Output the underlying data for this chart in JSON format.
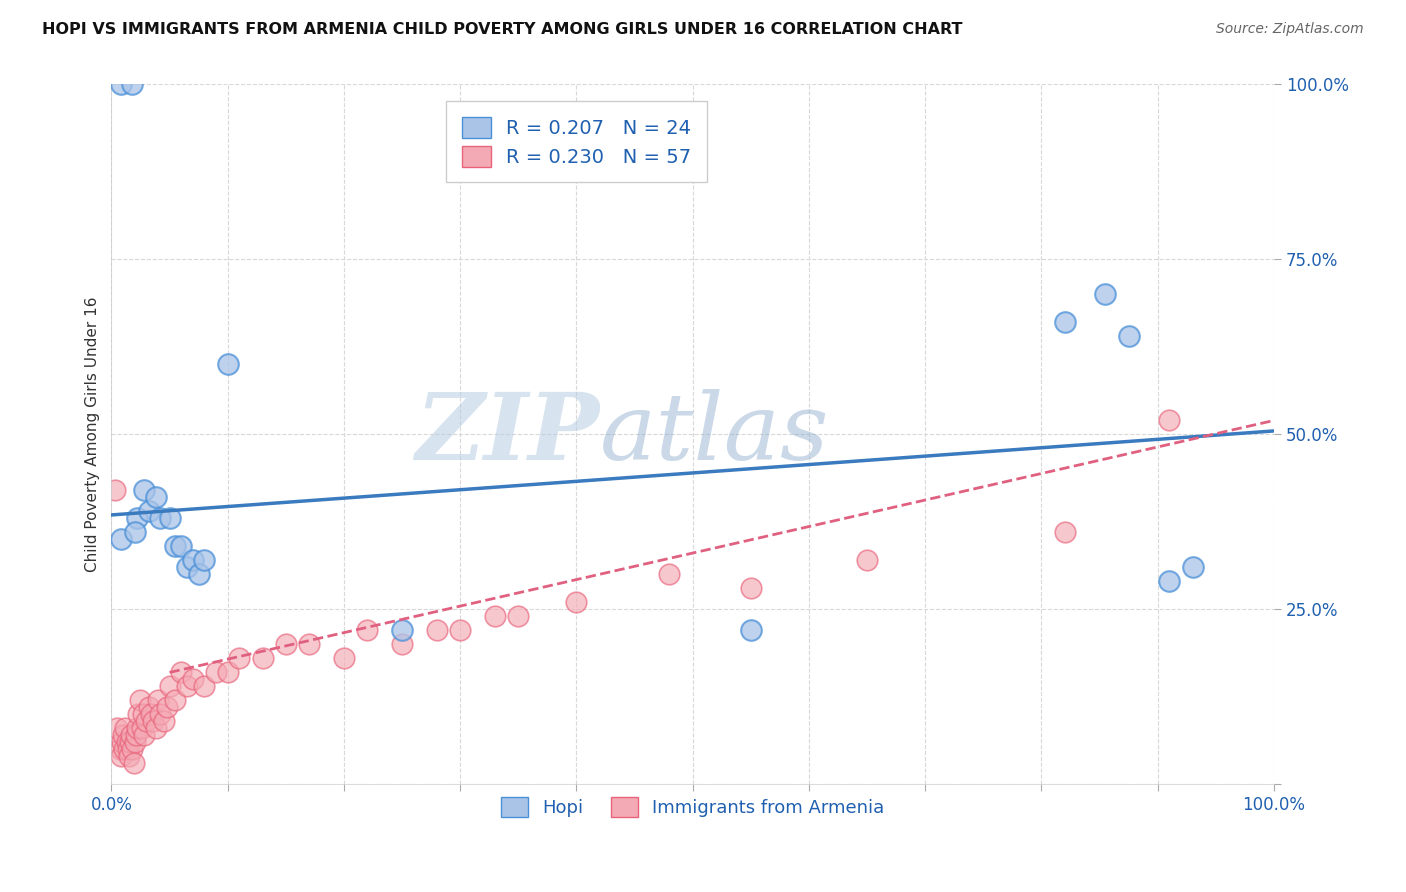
{
  "title": "HOPI VS IMMIGRANTS FROM ARMENIA CHILD POVERTY AMONG GIRLS UNDER 16 CORRELATION CHART",
  "source": "Source: ZipAtlas.com",
  "ylabel": "Child Poverty Among Girls Under 16",
  "xlim": [
    0.0,
    1.0
  ],
  "ylim": [
    0.0,
    1.0
  ],
  "xticks": [
    0.0,
    0.1,
    0.2,
    0.3,
    0.4,
    0.5,
    0.6,
    0.7,
    0.8,
    0.9,
    1.0
  ],
  "yticks": [
    0.0,
    0.25,
    0.5,
    0.75,
    1.0
  ],
  "xticklabels": [
    "0.0%",
    "",
    "",
    "",
    "",
    "",
    "",
    "",
    "",
    "",
    "100.0%"
  ],
  "yticklabels": [
    "",
    "25.0%",
    "50.0%",
    "75.0%",
    "100.0%"
  ],
  "background_color": "#ffffff",
  "grid_color": "#d8d8d8",
  "hopi_color": "#aac4e8",
  "armenia_color": "#f4aab5",
  "hopi_edge_color": "#4a90d9",
  "armenia_edge_color": "#e8637a",
  "hopi_line_color": "#3a7abf",
  "armenia_line_color": "#e06080",
  "hopi_R": 0.207,
  "hopi_N": 24,
  "armenia_R": 0.23,
  "armenia_N": 57,
  "watermark_zip": "ZIP",
  "watermark_atlas": "atlas",
  "legend_label_1": "Hopi",
  "legend_label_2": "Immigrants from Armenia",
  "hopi_scatter_x": [
    0.008,
    0.018,
    0.022,
    0.028,
    0.032,
    0.038,
    0.042,
    0.05,
    0.055,
    0.06,
    0.065,
    0.07,
    0.075,
    0.08,
    0.1,
    0.25,
    0.55,
    0.82,
    0.855,
    0.875,
    0.91,
    0.93,
    0.008,
    0.02
  ],
  "hopi_scatter_y": [
    1.0,
    1.0,
    0.38,
    0.42,
    0.39,
    0.41,
    0.38,
    0.38,
    0.34,
    0.34,
    0.31,
    0.32,
    0.3,
    0.32,
    0.6,
    0.22,
    0.22,
    0.66,
    0.7,
    0.64,
    0.29,
    0.31,
    0.35,
    0.36
  ],
  "armenia_scatter_x": [
    0.003,
    0.005,
    0.007,
    0.008,
    0.009,
    0.01,
    0.011,
    0.012,
    0.013,
    0.014,
    0.015,
    0.016,
    0.017,
    0.018,
    0.019,
    0.02,
    0.021,
    0.022,
    0.023,
    0.025,
    0.026,
    0.027,
    0.028,
    0.03,
    0.032,
    0.034,
    0.036,
    0.038,
    0.04,
    0.042,
    0.045,
    0.048,
    0.05,
    0.055,
    0.06,
    0.065,
    0.07,
    0.08,
    0.09,
    0.1,
    0.11,
    0.13,
    0.15,
    0.17,
    0.2,
    0.22,
    0.25,
    0.28,
    0.3,
    0.33,
    0.35,
    0.4,
    0.48,
    0.55,
    0.65,
    0.82,
    0.91
  ],
  "armenia_scatter_y": [
    0.42,
    0.08,
    0.05,
    0.04,
    0.06,
    0.07,
    0.05,
    0.08,
    0.06,
    0.05,
    0.04,
    0.06,
    0.07,
    0.05,
    0.03,
    0.06,
    0.07,
    0.08,
    0.1,
    0.12,
    0.08,
    0.1,
    0.07,
    0.09,
    0.11,
    0.1,
    0.09,
    0.08,
    0.12,
    0.1,
    0.09,
    0.11,
    0.14,
    0.12,
    0.16,
    0.14,
    0.15,
    0.14,
    0.16,
    0.16,
    0.18,
    0.18,
    0.2,
    0.2,
    0.18,
    0.22,
    0.2,
    0.22,
    0.22,
    0.24,
    0.24,
    0.26,
    0.3,
    0.28,
    0.32,
    0.36,
    0.52
  ],
  "hopi_trend_x": [
    0.0,
    1.0
  ],
  "hopi_trend_y": [
    0.385,
    0.505
  ],
  "armenia_trend_x": [
    0.05,
    1.0
  ],
  "armenia_trend_y": [
    0.16,
    0.52
  ]
}
